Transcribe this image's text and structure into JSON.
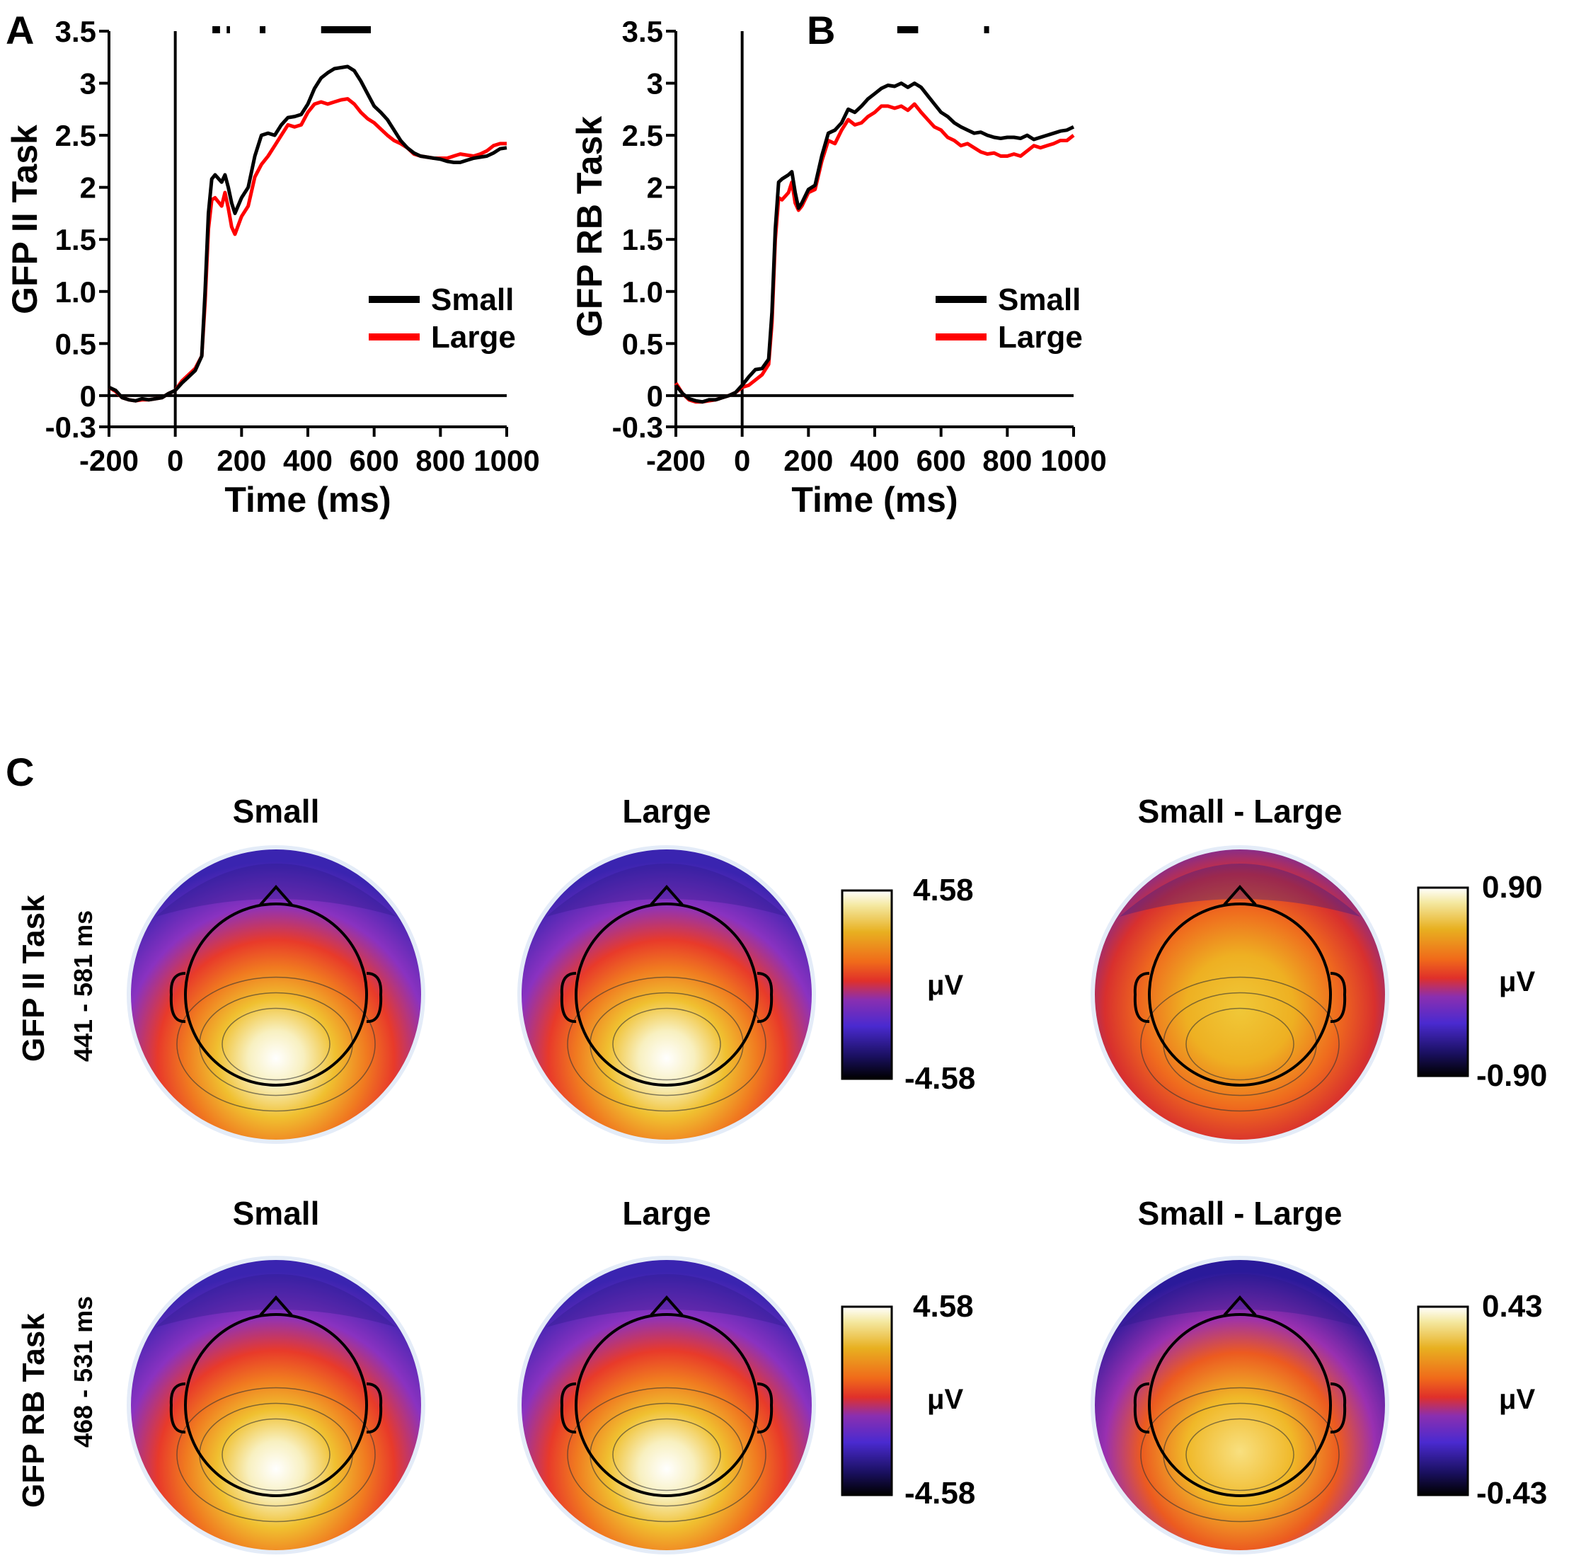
{
  "colors": {
    "small": "#000000",
    "large": "#ff0000",
    "axis": "#000000"
  },
  "chart_data": [
    {
      "panel": "A",
      "type": "line",
      "ylabel": "GFP II Task",
      "xlabel": "Time (ms)",
      "xlim": [
        -200,
        1000
      ],
      "ylim": [
        -0.3,
        3.5
      ],
      "xticks": [
        -200,
        0,
        200,
        400,
        600,
        800,
        1000
      ],
      "xtick_labels": [
        "-200",
        "0",
        "200",
        "400",
        "600",
        "800",
        "1000"
      ],
      "yticks": [
        -0.3,
        0,
        0.5,
        1.0,
        1.5,
        2,
        2.5,
        3,
        3.5
      ],
      "ytick_labels": [
        "-0.3",
        "0",
        "0.5",
        "1.0",
        "1.5",
        "2",
        "2.5",
        "3",
        "3.5"
      ],
      "legend": {
        "position": "right",
        "entries": [
          "Small",
          "Large"
        ]
      },
      "significance_bars": [
        [
          112,
          135
        ],
        [
          155,
          165
        ],
        [
          255,
          272
        ],
        [
          440,
          590
        ]
      ],
      "series": [
        {
          "name": "Small",
          "color": "#000000",
          "x": [
            -200,
            -180,
            -160,
            -140,
            -120,
            -100,
            -80,
            -60,
            -40,
            -20,
            0,
            20,
            40,
            60,
            80,
            90,
            100,
            110,
            120,
            140,
            150,
            160,
            170,
            180,
            200,
            220,
            240,
            260,
            280,
            300,
            320,
            340,
            360,
            380,
            400,
            420,
            440,
            460,
            480,
            500,
            520,
            540,
            560,
            580,
            600,
            620,
            640,
            660,
            680,
            700,
            720,
            740,
            760,
            780,
            800,
            820,
            840,
            860,
            880,
            900,
            920,
            940,
            960,
            980,
            1000
          ],
          "y": [
            0.08,
            0.05,
            -0.02,
            -0.04,
            -0.05,
            -0.03,
            -0.04,
            -0.03,
            -0.02,
            0.02,
            0.05,
            0.12,
            0.18,
            0.24,
            0.38,
            1.0,
            1.75,
            2.08,
            2.12,
            2.05,
            2.12,
            2.0,
            1.85,
            1.75,
            1.9,
            2.0,
            2.3,
            2.5,
            2.52,
            2.5,
            2.6,
            2.67,
            2.68,
            2.7,
            2.8,
            2.95,
            3.05,
            3.1,
            3.14,
            3.15,
            3.16,
            3.12,
            3.02,
            2.9,
            2.78,
            2.72,
            2.65,
            2.55,
            2.45,
            2.38,
            2.33,
            2.3,
            2.29,
            2.28,
            2.27,
            2.25,
            2.24,
            2.24,
            2.26,
            2.28,
            2.29,
            2.3,
            2.33,
            2.37,
            2.38
          ]
        },
        {
          "name": "Large",
          "color": "#ff0000",
          "x": [
            -200,
            -180,
            -160,
            -140,
            -120,
            -100,
            -80,
            -60,
            -40,
            -20,
            0,
            20,
            40,
            60,
            80,
            90,
            100,
            110,
            120,
            140,
            150,
            160,
            170,
            180,
            200,
            220,
            240,
            260,
            280,
            300,
            320,
            340,
            360,
            380,
            400,
            420,
            440,
            460,
            480,
            500,
            520,
            540,
            560,
            580,
            600,
            620,
            640,
            660,
            680,
            700,
            720,
            740,
            760,
            780,
            800,
            820,
            840,
            860,
            880,
            900,
            920,
            940,
            960,
            980,
            1000
          ],
          "y": [
            0.08,
            0.04,
            -0.02,
            -0.04,
            -0.05,
            -0.04,
            -0.04,
            -0.03,
            -0.02,
            0.02,
            0.05,
            0.14,
            0.2,
            0.26,
            0.38,
            0.9,
            1.6,
            1.88,
            1.9,
            1.82,
            1.95,
            1.8,
            1.62,
            1.55,
            1.72,
            1.82,
            2.1,
            2.22,
            2.3,
            2.4,
            2.5,
            2.6,
            2.58,
            2.6,
            2.72,
            2.8,
            2.82,
            2.8,
            2.82,
            2.84,
            2.85,
            2.8,
            2.72,
            2.66,
            2.62,
            2.56,
            2.5,
            2.45,
            2.42,
            2.38,
            2.32,
            2.3,
            2.29,
            2.28,
            2.28,
            2.28,
            2.3,
            2.32,
            2.31,
            2.3,
            2.32,
            2.35,
            2.4,
            2.42,
            2.42
          ]
        }
      ]
    },
    {
      "panel": "B",
      "type": "line",
      "ylabel": "GFP RB Task",
      "xlabel": "Time (ms)",
      "xlim": [
        -200,
        1000
      ],
      "ylim": [
        -0.3,
        3.5
      ],
      "xticks": [
        -200,
        0,
        200,
        400,
        600,
        800,
        1000
      ],
      "xtick_labels": [
        "-200",
        "0",
        "200",
        "400",
        "600",
        "800",
        "1000"
      ],
      "yticks": [
        -0.3,
        0,
        0.5,
        1.0,
        1.5,
        2,
        2.5,
        3,
        3.5
      ],
      "ytick_labels": [
        "-0.3",
        "0",
        "0.5",
        "1.0",
        "1.5",
        "2",
        "2.5",
        "3",
        "3.5"
      ],
      "legend": {
        "position": "right",
        "entries": [
          "Small",
          "Large"
        ]
      },
      "significance_bars": [
        [
          468,
          531
        ],
        [
          730,
          745
        ]
      ],
      "series": [
        {
          "name": "Small",
          "color": "#000000",
          "x": [
            -200,
            -180,
            -160,
            -140,
            -120,
            -100,
            -80,
            -60,
            -40,
            -20,
            0,
            20,
            40,
            60,
            80,
            90,
            100,
            110,
            120,
            140,
            150,
            160,
            170,
            180,
            200,
            220,
            240,
            260,
            280,
            300,
            320,
            340,
            360,
            380,
            400,
            420,
            440,
            460,
            480,
            500,
            520,
            540,
            560,
            580,
            600,
            620,
            640,
            660,
            680,
            700,
            720,
            740,
            760,
            780,
            800,
            820,
            840,
            860,
            880,
            900,
            920,
            940,
            960,
            980,
            1000
          ],
          "y": [
            0.1,
            0.02,
            -0.03,
            -0.05,
            -0.06,
            -0.04,
            -0.04,
            -0.02,
            0.0,
            0.03,
            0.1,
            0.18,
            0.25,
            0.26,
            0.35,
            0.8,
            1.6,
            2.05,
            2.08,
            2.12,
            2.15,
            1.95,
            1.8,
            1.85,
            1.98,
            2.02,
            2.3,
            2.52,
            2.55,
            2.62,
            2.75,
            2.72,
            2.78,
            2.85,
            2.9,
            2.95,
            2.98,
            2.97,
            3.0,
            2.96,
            3.0,
            2.96,
            2.88,
            2.8,
            2.72,
            2.68,
            2.62,
            2.58,
            2.55,
            2.52,
            2.53,
            2.5,
            2.48,
            2.47,
            2.48,
            2.48,
            2.47,
            2.5,
            2.46,
            2.48,
            2.5,
            2.52,
            2.54,
            2.55,
            2.58
          ]
        },
        {
          "name": "Large",
          "color": "#ff0000",
          "x": [
            -200,
            -180,
            -160,
            -140,
            -120,
            -100,
            -80,
            -60,
            -40,
            -20,
            0,
            20,
            40,
            60,
            80,
            90,
            100,
            110,
            120,
            140,
            150,
            160,
            170,
            180,
            200,
            220,
            240,
            260,
            280,
            300,
            320,
            340,
            360,
            380,
            400,
            420,
            440,
            460,
            480,
            500,
            520,
            540,
            560,
            580,
            600,
            620,
            640,
            660,
            680,
            700,
            720,
            740,
            760,
            780,
            800,
            820,
            840,
            860,
            880,
            900,
            920,
            940,
            960,
            980,
            1000
          ],
          "y": [
            0.12,
            0.02,
            -0.04,
            -0.06,
            -0.06,
            -0.05,
            -0.04,
            -0.02,
            0.0,
            0.03,
            0.08,
            0.1,
            0.15,
            0.2,
            0.3,
            0.7,
            1.5,
            1.9,
            1.88,
            1.95,
            2.05,
            1.85,
            1.78,
            1.82,
            1.95,
            1.98,
            2.25,
            2.45,
            2.42,
            2.55,
            2.65,
            2.6,
            2.62,
            2.68,
            2.72,
            2.78,
            2.78,
            2.76,
            2.78,
            2.74,
            2.8,
            2.72,
            2.65,
            2.58,
            2.55,
            2.48,
            2.45,
            2.4,
            2.42,
            2.38,
            2.34,
            2.32,
            2.33,
            2.3,
            2.3,
            2.32,
            2.3,
            2.35,
            2.4,
            2.38,
            2.4,
            2.42,
            2.45,
            2.45,
            2.5
          ]
        }
      ]
    },
    {
      "panel": "C",
      "type": "heatmap",
      "rows": [
        {
          "ylabel": "GFP II Task",
          "window": "441 - 581 ms",
          "maps": [
            {
              "title": "Small",
              "peak": "posterior",
              "scale_max": "4.58",
              "scale_min": "-4.58",
              "unit": "μV"
            },
            {
              "title": "Large",
              "peak": "posterior",
              "scale_max": "4.58",
              "scale_min": "-4.58",
              "unit": "μV"
            },
            {
              "title": "Small - Large",
              "peak": "central-posterior",
              "scale_max": "0.90",
              "scale_min": "-0.90",
              "unit": "μV"
            }
          ]
        },
        {
          "ylabel": "GFP RB Task",
          "window": "468 - 531 ms",
          "maps": [
            {
              "title": "Small",
              "peak": "posterior",
              "scale_max": "4.58",
              "scale_min": "-4.58",
              "unit": "μV"
            },
            {
              "title": "Large",
              "peak": "posterior",
              "scale_max": "4.58",
              "scale_min": "-4.58",
              "unit": "μV"
            },
            {
              "title": "Small - Large",
              "peak": "posterior",
              "scale_max": "0.43",
              "scale_min": "-0.43",
              "unit": "μV"
            }
          ]
        }
      ]
    }
  ]
}
